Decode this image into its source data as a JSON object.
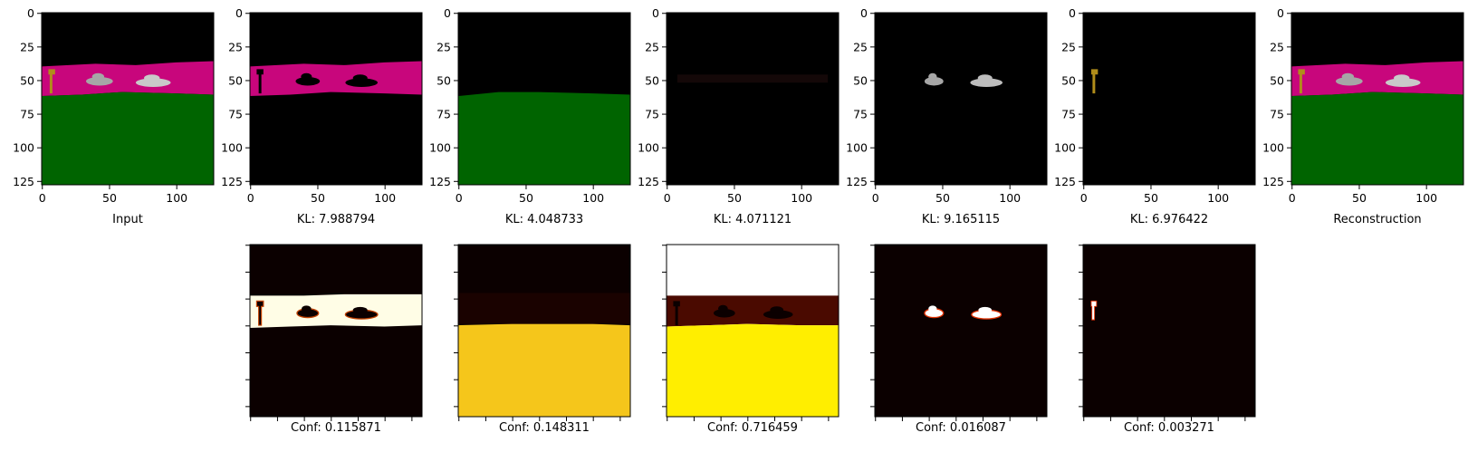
{
  "figure": {
    "colors": {
      "black": "#000000",
      "magenta": "#c8067c",
      "green": "#006400",
      "gold": "#b08d1a",
      "car_gray": "#a6a6a6",
      "heat_dark": "#0b0000",
      "heat_maroon": "#4a0a00",
      "heat_cream": "#fffde6",
      "heat_yellow": "#ffee00",
      "heat_gold": "#f5c61b",
      "white": "#ffffff"
    },
    "axis": {
      "xticks": [
        "0",
        "50",
        "100"
      ],
      "yticks": [
        "0",
        "25",
        "50",
        "75",
        "100",
        "125"
      ]
    },
    "top_row": [
      {
        "id": "input",
        "caption": "Input",
        "kind": "scene"
      },
      {
        "id": "slot1",
        "caption": "KL: 7.988794",
        "kind": "strip_mask"
      },
      {
        "id": "slot2",
        "caption": "KL: 4.048733",
        "kind": "ground"
      },
      {
        "id": "slot3",
        "caption": "KL: 4.071121",
        "kind": "faint"
      },
      {
        "id": "slot4",
        "caption": "KL: 9.165115",
        "kind": "cars"
      },
      {
        "id": "slot5",
        "caption": "KL: 6.976422",
        "kind": "key"
      },
      {
        "id": "recon",
        "caption": "Reconstruction",
        "kind": "scene"
      }
    ],
    "bottom_row": [
      {
        "id": "conf1",
        "caption": "Conf: 0.115871",
        "kind": "heat_strip"
      },
      {
        "id": "conf2",
        "caption": "Conf: 0.148311",
        "kind": "heat_ground"
      },
      {
        "id": "conf3",
        "caption": "Conf: 0.716459",
        "kind": "heat_sky"
      },
      {
        "id": "conf4",
        "caption": "Conf: 0.016087",
        "kind": "heat_cars"
      },
      {
        "id": "conf5",
        "caption": "Conf: 0.003271",
        "kind": "heat_key"
      }
    ]
  }
}
